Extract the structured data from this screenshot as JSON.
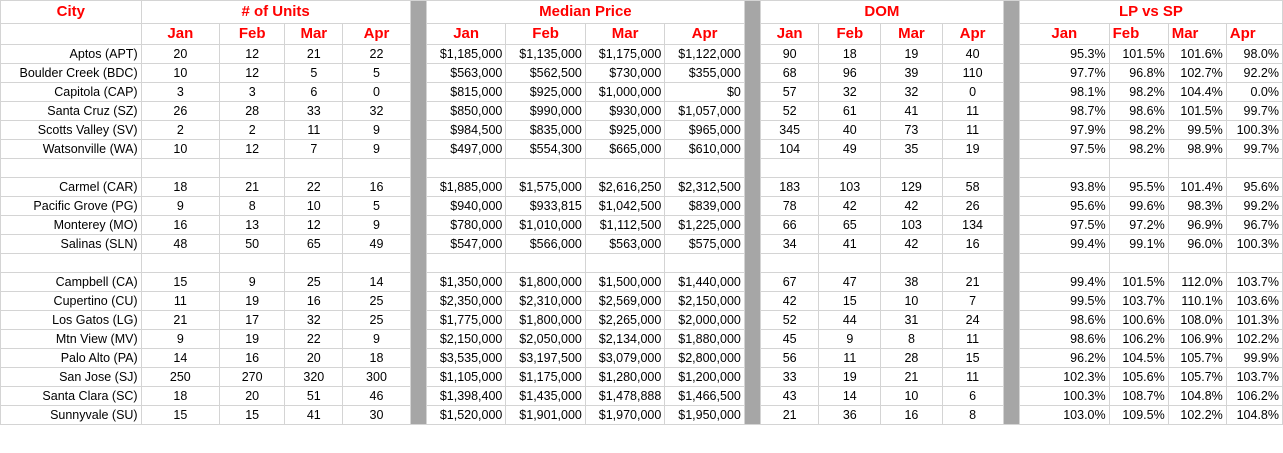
{
  "headers": {
    "city": "City",
    "units": "# of Units",
    "median": "Median Price",
    "dom": "DOM",
    "lpsp": "LP vs SP"
  },
  "months": [
    "Jan",
    "Feb",
    "Mar",
    "Apr"
  ],
  "rows": [
    {
      "city": "Aptos (APT)",
      "units": [
        "20",
        "12",
        "21",
        "22"
      ],
      "median": [
        "$1,185,000",
        "$1,135,000",
        "$1,175,000",
        "$1,122,000"
      ],
      "dom": [
        "90",
        "18",
        "19",
        "40"
      ],
      "lpsp": [
        "95.3%",
        "101.5%",
        "101.6%",
        "98.0%"
      ]
    },
    {
      "city": "Boulder Creek (BDC)",
      "units": [
        "10",
        "12",
        "5",
        "5"
      ],
      "median": [
        "$563,000",
        "$562,500",
        "$730,000",
        "$355,000"
      ],
      "dom": [
        "68",
        "96",
        "39",
        "110"
      ],
      "lpsp": [
        "97.7%",
        "96.8%",
        "102.7%",
        "92.2%"
      ]
    },
    {
      "city": "Capitola (CAP)",
      "units": [
        "3",
        "3",
        "6",
        "0"
      ],
      "median": [
        "$815,000",
        "$925,000",
        "$1,000,000",
        "$0"
      ],
      "dom": [
        "57",
        "32",
        "32",
        "0"
      ],
      "lpsp": [
        "98.1%",
        "98.2%",
        "104.4%",
        "0.0%"
      ]
    },
    {
      "city": "Santa Cruz (SZ)",
      "units": [
        "26",
        "28",
        "33",
        "32"
      ],
      "median": [
        "$850,000",
        "$990,000",
        "$930,000",
        "$1,057,000"
      ],
      "dom": [
        "52",
        "61",
        "41",
        "11"
      ],
      "lpsp": [
        "98.7%",
        "98.6%",
        "101.5%",
        "99.7%"
      ]
    },
    {
      "city": "Scotts Valley (SV)",
      "units": [
        "2",
        "2",
        "11",
        "9"
      ],
      "median": [
        "$984,500",
        "$835,000",
        "$925,000",
        "$965,000"
      ],
      "dom": [
        "345",
        "40",
        "73",
        "11"
      ],
      "lpsp": [
        "97.9%",
        "98.2%",
        "99.5%",
        "100.3%"
      ]
    },
    {
      "city": "Watsonville (WA)",
      "units": [
        "10",
        "12",
        "7",
        "9"
      ],
      "median": [
        "$497,000",
        "$554,300",
        "$665,000",
        "$610,000"
      ],
      "dom": [
        "104",
        "49",
        "35",
        "19"
      ],
      "lpsp": [
        "97.5%",
        "98.2%",
        "98.9%",
        "99.7%"
      ]
    },
    {
      "blank": true
    },
    {
      "city": "Carmel (CAR)",
      "units": [
        "18",
        "21",
        "22",
        "16"
      ],
      "median": [
        "$1,885,000",
        "$1,575,000",
        "$2,616,250",
        "$2,312,500"
      ],
      "dom": [
        "183",
        "103",
        "129",
        "58"
      ],
      "lpsp": [
        "93.8%",
        "95.5%",
        "101.4%",
        "95.6%"
      ]
    },
    {
      "city": "Pacific Grove (PG)",
      "units": [
        "9",
        "8",
        "10",
        "5"
      ],
      "median": [
        "$940,000",
        "$933,815",
        "$1,042,500",
        "$839,000"
      ],
      "dom": [
        "78",
        "42",
        "42",
        "26"
      ],
      "lpsp": [
        "95.6%",
        "99.6%",
        "98.3%",
        "99.2%"
      ]
    },
    {
      "city": "Monterey (MO)",
      "units": [
        "16",
        "13",
        "12",
        "9"
      ],
      "median": [
        "$780,000",
        "$1,010,000",
        "$1,112,500",
        "$1,225,000"
      ],
      "dom": [
        "66",
        "65",
        "103",
        "134"
      ],
      "lpsp": [
        "97.5%",
        "97.2%",
        "96.9%",
        "96.7%"
      ]
    },
    {
      "city": "Salinas (SLN)",
      "units": [
        "48",
        "50",
        "65",
        "49"
      ],
      "median": [
        "$547,000",
        "$566,000",
        "$563,000",
        "$575,000"
      ],
      "dom": [
        "34",
        "41",
        "42",
        "16"
      ],
      "lpsp": [
        "99.4%",
        "99.1%",
        "96.0%",
        "100.3%"
      ]
    },
    {
      "blank": true
    },
    {
      "city": "Campbell (CA)",
      "units": [
        "15",
        "9",
        "25",
        "14"
      ],
      "median": [
        "$1,350,000",
        "$1,800,000",
        "$1,500,000",
        "$1,440,000"
      ],
      "dom": [
        "67",
        "47",
        "38",
        "21"
      ],
      "lpsp": [
        "99.4%",
        "101.5%",
        "112.0%",
        "103.7%"
      ]
    },
    {
      "city": "Cupertino (CU)",
      "units": [
        "11",
        "19",
        "16",
        "25"
      ],
      "median": [
        "$2,350,000",
        "$2,310,000",
        "$2,569,000",
        "$2,150,000"
      ],
      "dom": [
        "42",
        "15",
        "10",
        "7"
      ],
      "lpsp": [
        "99.5%",
        "103.7%",
        "110.1%",
        "103.6%"
      ]
    },
    {
      "city": "Los Gatos (LG)",
      "units": [
        "21",
        "17",
        "32",
        "25"
      ],
      "median": [
        "$1,775,000",
        "$1,800,000",
        "$2,265,000",
        "$2,000,000"
      ],
      "dom": [
        "52",
        "44",
        "31",
        "24"
      ],
      "lpsp": [
        "98.6%",
        "100.6%",
        "108.0%",
        "101.3%"
      ]
    },
    {
      "city": "Mtn View (MV)",
      "units": [
        "9",
        "19",
        "22",
        "9"
      ],
      "median": [
        "$2,150,000",
        "$2,050,000",
        "$2,134,000",
        "$1,880,000"
      ],
      "dom": [
        "45",
        "9",
        "8",
        "11"
      ],
      "lpsp": [
        "98.6%",
        "106.2%",
        "106.9%",
        "102.2%"
      ]
    },
    {
      "city": "Palo Alto (PA)",
      "units": [
        "14",
        "16",
        "20",
        "18"
      ],
      "median": [
        "$3,535,000",
        "$3,197,500",
        "$3,079,000",
        "$2,800,000"
      ],
      "dom": [
        "56",
        "11",
        "28",
        "15"
      ],
      "lpsp": [
        "96.2%",
        "104.5%",
        "105.7%",
        "99.9%"
      ]
    },
    {
      "city": "San Jose (SJ)",
      "units": [
        "250",
        "270",
        "320",
        "300"
      ],
      "median": [
        "$1,105,000",
        "$1,175,000",
        "$1,280,000",
        "$1,200,000"
      ],
      "dom": [
        "33",
        "19",
        "21",
        "11"
      ],
      "lpsp": [
        "102.3%",
        "105.6%",
        "105.7%",
        "103.7%"
      ]
    },
    {
      "city": "Santa Clara (SC)",
      "units": [
        "18",
        "20",
        "51",
        "46"
      ],
      "median": [
        "$1,398,400",
        "$1,435,000",
        "$1,478,888",
        "$1,466,500"
      ],
      "dom": [
        "43",
        "14",
        "10",
        "6"
      ],
      "lpsp": [
        "100.3%",
        "108.7%",
        "104.8%",
        "106.2%"
      ]
    },
    {
      "city": "Sunnyvale (SU)",
      "units": [
        "15",
        "15",
        "41",
        "30"
      ],
      "median": [
        "$1,520,000",
        "$1,901,000",
        "$1,970,000",
        "$1,950,000"
      ],
      "dom": [
        "21",
        "36",
        "16",
        "8"
      ],
      "lpsp": [
        "103.0%",
        "109.5%",
        "102.2%",
        "104.8%"
      ]
    }
  ]
}
